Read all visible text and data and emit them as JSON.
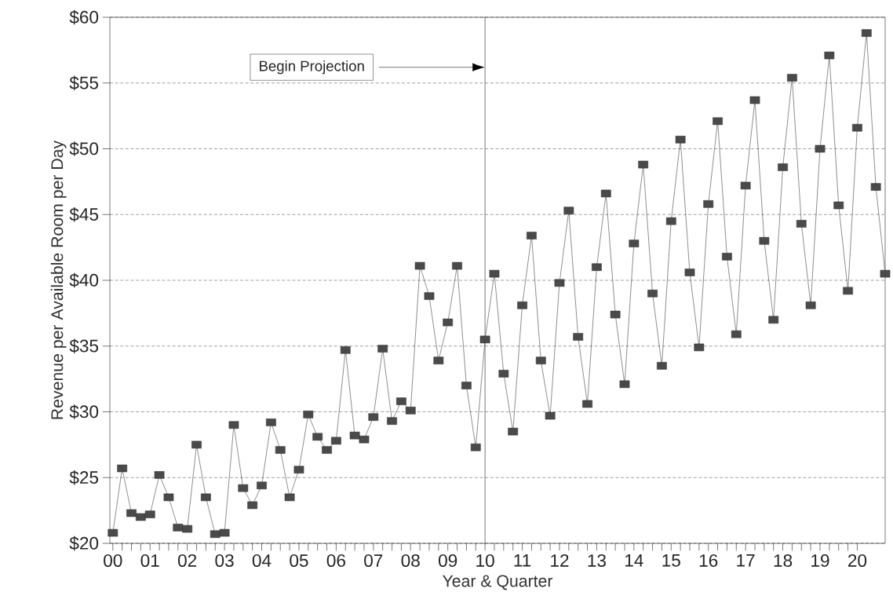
{
  "chart_data": {
    "type": "line",
    "xlabel": "Year & Quarter",
    "ylabel": "Revenue per Available Room per Day",
    "x": [
      0,
      0.25,
      0.5,
      0.75,
      1,
      1.25,
      1.5,
      1.75,
      2,
      2.25,
      2.5,
      2.75,
      3,
      3.25,
      3.5,
      3.75,
      4,
      4.25,
      4.5,
      4.75,
      5,
      5.25,
      5.5,
      5.75,
      6,
      6.25,
      6.5,
      6.75,
      7,
      7.25,
      7.5,
      7.75,
      8,
      8.25,
      8.5,
      8.75,
      9,
      9.25,
      9.5,
      9.75,
      10,
      10.25,
      10.5,
      10.75,
      11,
      11.25,
      11.5,
      11.75,
      12,
      12.25,
      12.5,
      12.75,
      13,
      13.25,
      13.5,
      13.75,
      14,
      14.25,
      14.5,
      14.75,
      15,
      15.25,
      15.5,
      15.75,
      16,
      16.25,
      16.5,
      16.75,
      17,
      17.25,
      17.5,
      17.75,
      18,
      18.25,
      18.5,
      18.75,
      19,
      19.25,
      19.5,
      19.75,
      20,
      20.25,
      20.5,
      20.75
    ],
    "values": [
      20.8,
      25.7,
      22.3,
      22.0,
      22.2,
      25.2,
      23.5,
      21.2,
      21.1,
      27.5,
      23.5,
      20.7,
      20.8,
      29.0,
      24.2,
      22.9,
      24.4,
      29.2,
      27.1,
      23.5,
      25.6,
      29.8,
      28.1,
      27.1,
      27.8,
      34.7,
      28.2,
      27.9,
      29.6,
      34.8,
      29.3,
      30.8,
      30.1,
      41.1,
      38.8,
      33.9,
      36.8,
      41.1,
      32.0,
      27.3,
      35.5,
      40.5,
      32.9,
      28.5,
      38.1,
      43.4,
      33.9,
      29.7,
      39.8,
      45.3,
      35.7,
      30.6,
      41.0,
      46.6,
      37.4,
      32.1,
      42.8,
      48.8,
      39.0,
      33.5,
      44.5,
      50.7,
      40.6,
      34.9,
      45.8,
      52.1,
      41.8,
      35.9,
      47.2,
      53.7,
      43.0,
      37.0,
      48.6,
      55.4,
      44.3,
      38.1,
      50.0,
      57.1,
      45.7,
      39.2,
      51.6,
      58.8,
      47.1,
      40.5
    ],
    "color": "#4a4a4a",
    "marker": "square",
    "line_style": "solid",
    "grid": "y",
    "xlim": [
      -0.08,
      20.75
    ],
    "ylim": [
      20,
      60
    ],
    "xticks": [
      {
        "value": 0,
        "label": "00"
      },
      {
        "value": 1,
        "label": "01"
      },
      {
        "value": 2,
        "label": "02"
      },
      {
        "value": 3,
        "label": "03"
      },
      {
        "value": 4,
        "label": "04"
      },
      {
        "value": 5,
        "label": "05"
      },
      {
        "value": 6,
        "label": "06"
      },
      {
        "value": 7,
        "label": "07"
      },
      {
        "value": 8,
        "label": "08"
      },
      {
        "value": 9,
        "label": "09"
      },
      {
        "value": 10,
        "label": "10"
      },
      {
        "value": 11,
        "label": "11"
      },
      {
        "value": 12,
        "label": "12"
      },
      {
        "value": 13,
        "label": "13"
      },
      {
        "value": 14,
        "label": "14"
      },
      {
        "value": 15,
        "label": "15"
      },
      {
        "value": 16,
        "label": "16"
      },
      {
        "value": 17,
        "label": "17"
      },
      {
        "value": 18,
        "label": "18"
      },
      {
        "value": 19,
        "label": "19"
      },
      {
        "value": 20,
        "label": "20"
      }
    ],
    "yticks": [
      {
        "value": 20,
        "label": "$20"
      },
      {
        "value": 25,
        "label": "$25"
      },
      {
        "value": 30,
        "label": "$30"
      },
      {
        "value": 35,
        "label": "$35"
      },
      {
        "value": 40,
        "label": "$40"
      },
      {
        "value": 45,
        "label": "$45"
      },
      {
        "value": 50,
        "label": "$50"
      },
      {
        "value": 55,
        "label": "$55"
      },
      {
        "value": 60,
        "label": "$60"
      }
    ],
    "ref_lines": [
      {
        "axis": "x",
        "value": 10,
        "label": "Begin Projection"
      }
    ]
  }
}
